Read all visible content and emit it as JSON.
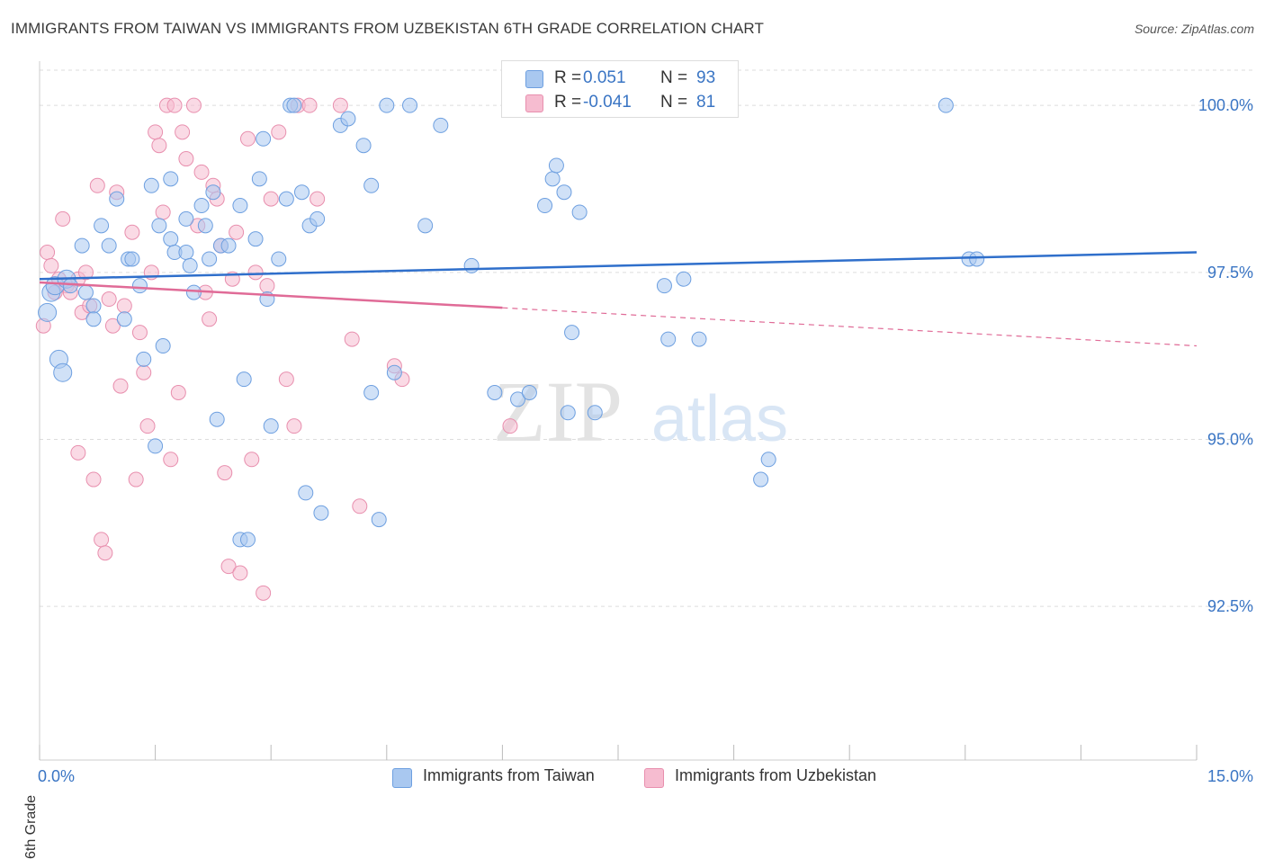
{
  "title": "IMMIGRANTS FROM TAIWAN VS IMMIGRANTS FROM UZBEKISTAN 6TH GRADE CORRELATION CHART",
  "source": "Source: ZipAtlas.com",
  "watermark": {
    "zip": "ZIP",
    "atlas": "atlas"
  },
  "colors": {
    "blue_fill": "#a9c8f0",
    "blue_stroke": "#6d9fe0",
    "blue_line": "#2f6fcb",
    "pink_fill": "#f6bcd0",
    "pink_stroke": "#e88fae",
    "pink_line": "#e06b97",
    "axis_text": "#3a75c4",
    "grid": "#dddddd"
  },
  "legend_stats": [
    {
      "series": "Immigrants from Taiwan",
      "r_label": "R =",
      "r_value": "0.051",
      "n_label": "N =",
      "n_value": "93"
    },
    {
      "series": "Immigrants from Uzbekistan",
      "r_label": "R =",
      "r_value": "-0.041",
      "n_label": "N =",
      "n_value": "81"
    }
  ],
  "chart_data": {
    "type": "scatter",
    "title": "IMMIGRANTS FROM TAIWAN VS IMMIGRANTS FROM UZBEKISTAN 6TH GRADE CORRELATION CHART",
    "xlabel": "",
    "ylabel": "6th Grade",
    "xlim": [
      0,
      15
    ],
    "ylim": [
      90.2,
      100.5
    ],
    "x_tick_labels": [
      "0.0%",
      "15.0%"
    ],
    "y_ticks": [
      92.5,
      95.0,
      97.5,
      100.0
    ],
    "y_tick_labels": [
      "92.5%",
      "95.0%",
      "97.5%",
      "100.0%"
    ],
    "grid": true,
    "legend_position": "bottom",
    "series": [
      {
        "name": "Immigrants from Taiwan",
        "color": "#a9c8f0",
        "trend": {
          "x0": 0,
          "y0": 97.4,
          "x1": 15,
          "y1": 97.8,
          "dashed_from": null
        },
        "points": [
          [
            0.1,
            96.9
          ],
          [
            0.15,
            97.2
          ],
          [
            0.2,
            97.3
          ],
          [
            0.25,
            96.2
          ],
          [
            0.3,
            96.0
          ],
          [
            0.35,
            97.4
          ],
          [
            0.4,
            97.3
          ],
          [
            0.55,
            97.9
          ],
          [
            0.6,
            97.2
          ],
          [
            0.7,
            97.0
          ],
          [
            0.7,
            96.8
          ],
          [
            0.8,
            98.2
          ],
          [
            0.9,
            97.9
          ],
          [
            1.0,
            98.6
          ],
          [
            1.1,
            96.8
          ],
          [
            1.15,
            97.7
          ],
          [
            1.2,
            97.7
          ],
          [
            1.3,
            97.3
          ],
          [
            1.35,
            96.2
          ],
          [
            1.45,
            98.8
          ],
          [
            1.5,
            94.9
          ],
          [
            1.55,
            98.2
          ],
          [
            1.6,
            96.4
          ],
          [
            1.7,
            98.0
          ],
          [
            1.7,
            98.9
          ],
          [
            1.75,
            97.8
          ],
          [
            1.9,
            98.3
          ],
          [
            1.9,
            97.8
          ],
          [
            1.95,
            97.6
          ],
          [
            2.0,
            97.2
          ],
          [
            2.1,
            98.5
          ],
          [
            2.15,
            98.2
          ],
          [
            2.2,
            97.7
          ],
          [
            2.25,
            98.7
          ],
          [
            2.3,
            95.3
          ],
          [
            2.35,
            97.9
          ],
          [
            2.45,
            97.9
          ],
          [
            2.6,
            98.5
          ],
          [
            2.6,
            93.5
          ],
          [
            2.7,
            93.5
          ],
          [
            2.65,
            95.9
          ],
          [
            2.8,
            98.0
          ],
          [
            2.85,
            98.9
          ],
          [
            2.9,
            99.5
          ],
          [
            2.95,
            97.1
          ],
          [
            3.0,
            95.2
          ],
          [
            3.1,
            97.7
          ],
          [
            3.2,
            98.6
          ],
          [
            3.25,
            100.0
          ],
          [
            3.3,
            100.0
          ],
          [
            3.4,
            98.7
          ],
          [
            3.45,
            94.2
          ],
          [
            3.5,
            98.2
          ],
          [
            3.6,
            98.3
          ],
          [
            3.65,
            93.9
          ],
          [
            3.9,
            99.7
          ],
          [
            4.0,
            99.8
          ],
          [
            4.2,
            99.4
          ],
          [
            4.3,
            98.8
          ],
          [
            4.3,
            95.7
          ],
          [
            4.4,
            93.8
          ],
          [
            4.5,
            100.0
          ],
          [
            4.6,
            96.0
          ],
          [
            4.8,
            100.0
          ],
          [
            5.0,
            98.2
          ],
          [
            5.2,
            99.7
          ],
          [
            5.6,
            97.6
          ],
          [
            5.9,
            95.7
          ],
          [
            6.2,
            95.6
          ],
          [
            6.35,
            95.7
          ],
          [
            6.55,
            98.5
          ],
          [
            6.65,
            98.9
          ],
          [
            6.7,
            99.1
          ],
          [
            6.8,
            98.7
          ],
          [
            6.85,
            95.4
          ],
          [
            6.9,
            96.6
          ],
          [
            7.0,
            98.4
          ],
          [
            7.2,
            95.4
          ],
          [
            7.5,
            100.0
          ],
          [
            8.1,
            97.3
          ],
          [
            8.15,
            96.5
          ],
          [
            8.35,
            97.4
          ],
          [
            8.55,
            96.5
          ],
          [
            9.45,
            94.7
          ],
          [
            9.35,
            94.4
          ],
          [
            11.75,
            100.0
          ],
          [
            12.05,
            97.7
          ],
          [
            12.15,
            97.7
          ]
        ]
      },
      {
        "name": "Immigrants from Uzbekistan",
        "color": "#f6bcd0",
        "trend": {
          "x0": 0,
          "y0": 97.35,
          "x1": 15,
          "y1": 96.4,
          "dashed_from": 6.0
        },
        "points": [
          [
            0.05,
            96.7
          ],
          [
            0.1,
            97.8
          ],
          [
            0.15,
            97.6
          ],
          [
            0.2,
            97.2
          ],
          [
            0.25,
            97.4
          ],
          [
            0.3,
            98.3
          ],
          [
            0.35,
            97.3
          ],
          [
            0.4,
            97.2
          ],
          [
            0.5,
            97.4
          ],
          [
            0.5,
            94.8
          ],
          [
            0.55,
            96.9
          ],
          [
            0.6,
            97.5
          ],
          [
            0.65,
            97.0
          ],
          [
            0.7,
            94.4
          ],
          [
            0.75,
            98.8
          ],
          [
            0.8,
            93.5
          ],
          [
            0.85,
            93.3
          ],
          [
            0.9,
            97.1
          ],
          [
            0.95,
            96.7
          ],
          [
            1.0,
            98.7
          ],
          [
            1.05,
            95.8
          ],
          [
            1.1,
            97.0
          ],
          [
            1.2,
            98.1
          ],
          [
            1.25,
            94.4
          ],
          [
            1.3,
            96.6
          ],
          [
            1.35,
            96.0
          ],
          [
            1.4,
            95.2
          ],
          [
            1.45,
            97.5
          ],
          [
            1.5,
            99.6
          ],
          [
            1.55,
            99.4
          ],
          [
            1.6,
            98.4
          ],
          [
            1.65,
            100.0
          ],
          [
            1.7,
            94.7
          ],
          [
            1.75,
            100.0
          ],
          [
            1.8,
            95.7
          ],
          [
            1.85,
            99.6
          ],
          [
            1.9,
            99.2
          ],
          [
            2.0,
            100.0
          ],
          [
            2.05,
            98.2
          ],
          [
            2.1,
            99.0
          ],
          [
            2.15,
            97.2
          ],
          [
            2.2,
            96.8
          ],
          [
            2.25,
            98.8
          ],
          [
            2.3,
            98.6
          ],
          [
            2.35,
            97.9
          ],
          [
            2.4,
            94.5
          ],
          [
            2.45,
            93.1
          ],
          [
            2.5,
            97.4
          ],
          [
            2.55,
            98.1
          ],
          [
            2.6,
            93.0
          ],
          [
            2.7,
            99.5
          ],
          [
            2.75,
            94.7
          ],
          [
            2.8,
            97.5
          ],
          [
            2.9,
            92.7
          ],
          [
            2.95,
            97.3
          ],
          [
            3.0,
            98.6
          ],
          [
            3.1,
            99.6
          ],
          [
            3.2,
            95.9
          ],
          [
            3.3,
            95.2
          ],
          [
            3.35,
            100.0
          ],
          [
            3.5,
            100.0
          ],
          [
            3.6,
            98.6
          ],
          [
            3.9,
            100.0
          ],
          [
            4.05,
            96.5
          ],
          [
            4.15,
            94.0
          ],
          [
            4.6,
            96.1
          ],
          [
            4.7,
            95.9
          ],
          [
            6.1,
            95.2
          ]
        ]
      }
    ]
  },
  "bottom_legend": [
    {
      "label": "Immigrants from Taiwan"
    },
    {
      "label": "Immigrants from Uzbekistan"
    }
  ]
}
